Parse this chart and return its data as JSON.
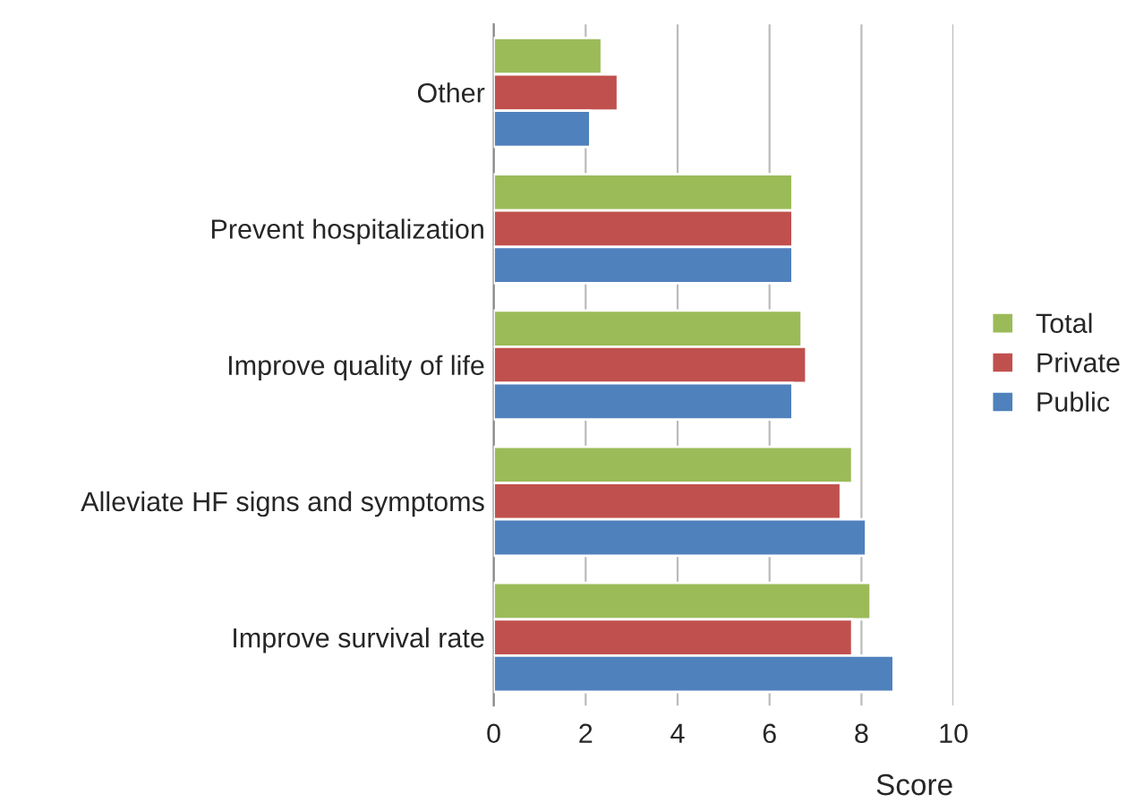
{
  "chart_data": {
    "type": "bar",
    "orientation": "horizontal",
    "xlabel": "Score",
    "categories": [
      "Other",
      "Prevent hospitalization",
      "Improve quality of life",
      "Alleviate HF signs and symptoms",
      "Improve survival rate"
    ],
    "series": [
      {
        "name": "Total",
        "color": "#9bbb59",
        "values": [
          2.35,
          6.5,
          6.7,
          7.8,
          8.2
        ]
      },
      {
        "name": "Private",
        "color": "#c0504d",
        "values": [
          2.7,
          6.5,
          6.8,
          7.55,
          7.8
        ]
      },
      {
        "name": "Public",
        "color": "#4f81bd",
        "values": [
          2.1,
          6.5,
          6.5,
          8.1,
          8.7
        ]
      }
    ],
    "xlim": [
      0,
      10
    ],
    "xticks": [
      0,
      2,
      4,
      6,
      8,
      10
    ],
    "grid": "x",
    "legend": "right"
  }
}
